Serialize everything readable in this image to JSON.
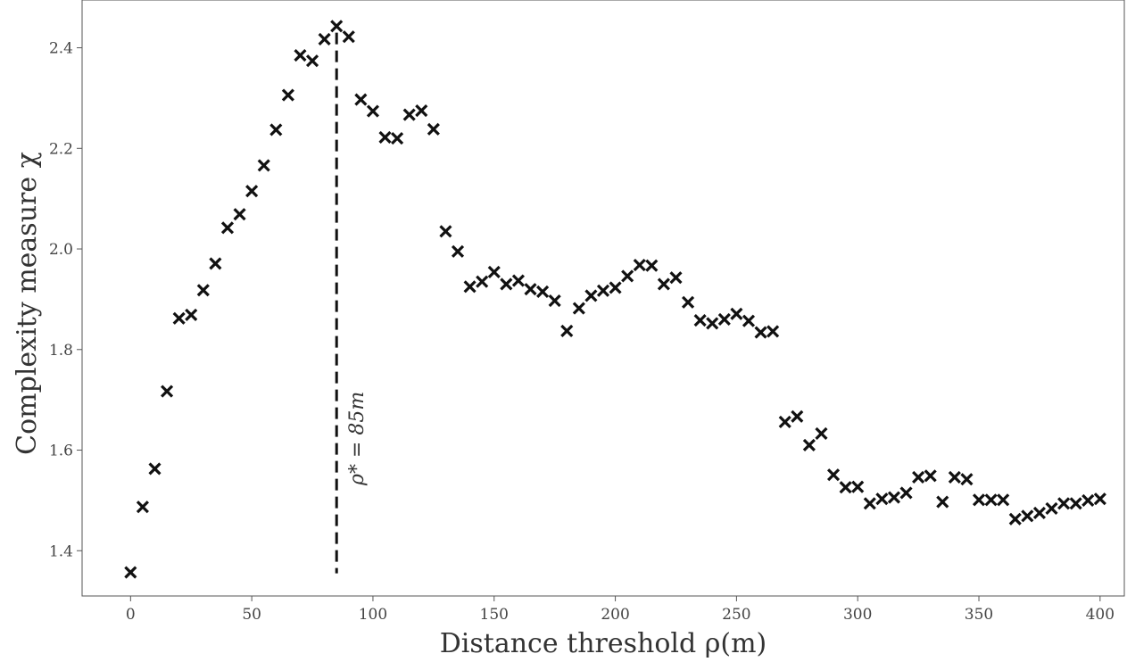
{
  "chart_data": {
    "type": "scatter",
    "xlabel": "Distance threshold ρ(m)",
    "ylabel": "Complexity measure χ",
    "xlim": [
      -20,
      410
    ],
    "ylim": [
      1.31,
      2.495
    ],
    "xticks": [
      0,
      50,
      100,
      150,
      200,
      250,
      300,
      350,
      400
    ],
    "yticks": [
      1.4,
      1.6,
      1.8,
      2.0,
      2.2,
      2.4
    ],
    "xtick_labels": [
      "0",
      "50",
      "100",
      "150",
      "200",
      "250",
      "300",
      "350",
      "400"
    ],
    "ytick_labels": [
      "1.4",
      "1.6",
      "1.8",
      "2.0",
      "2.2",
      "2.4"
    ],
    "grid": false,
    "marker": "x",
    "marker_color": "#111111",
    "annotation": {
      "text": "ρ* = 85m",
      "x": 85,
      "line_style": "dashed",
      "line_y_range": [
        1.355,
        2.43
      ]
    },
    "points": [
      [
        0,
        1.357
      ],
      [
        5,
        1.487
      ],
      [
        10,
        1.563
      ],
      [
        15,
        1.717
      ],
      [
        20,
        1.862
      ],
      [
        25,
        1.869
      ],
      [
        30,
        1.918
      ],
      [
        35,
        1.971
      ],
      [
        40,
        2.042
      ],
      [
        45,
        2.069
      ],
      [
        50,
        2.115
      ],
      [
        55,
        2.166
      ],
      [
        60,
        2.237
      ],
      [
        65,
        2.306
      ],
      [
        70,
        2.385
      ],
      [
        75,
        2.374
      ],
      [
        80,
        2.417
      ],
      [
        85,
        2.443
      ],
      [
        90,
        2.422
      ],
      [
        95,
        2.297
      ],
      [
        100,
        2.274
      ],
      [
        105,
        2.222
      ],
      [
        110,
        2.22
      ],
      [
        115,
        2.267
      ],
      [
        120,
        2.275
      ],
      [
        125,
        2.238
      ],
      [
        130,
        2.035
      ],
      [
        135,
        1.995
      ],
      [
        140,
        1.925
      ],
      [
        145,
        1.935
      ],
      [
        150,
        1.954
      ],
      [
        155,
        1.93
      ],
      [
        160,
        1.937
      ],
      [
        165,
        1.92
      ],
      [
        170,
        1.915
      ],
      [
        175,
        1.897
      ],
      [
        180,
        1.837
      ],
      [
        185,
        1.882
      ],
      [
        190,
        1.907
      ],
      [
        195,
        1.917
      ],
      [
        200,
        1.923
      ],
      [
        205,
        1.946
      ],
      [
        210,
        1.968
      ],
      [
        215,
        1.967
      ],
      [
        220,
        1.93
      ],
      [
        225,
        1.943
      ],
      [
        230,
        1.894
      ],
      [
        235,
        1.858
      ],
      [
        240,
        1.852
      ],
      [
        245,
        1.86
      ],
      [
        250,
        1.871
      ],
      [
        255,
        1.857
      ],
      [
        260,
        1.834
      ],
      [
        265,
        1.836
      ],
      [
        270,
        1.656
      ],
      [
        275,
        1.667
      ],
      [
        280,
        1.61
      ],
      [
        285,
        1.633
      ],
      [
        290,
        1.551
      ],
      [
        295,
        1.526
      ],
      [
        300,
        1.527
      ],
      [
        305,
        1.494
      ],
      [
        310,
        1.503
      ],
      [
        315,
        1.506
      ],
      [
        320,
        1.515
      ],
      [
        325,
        1.546
      ],
      [
        330,
        1.549
      ],
      [
        335,
        1.497
      ],
      [
        340,
        1.546
      ],
      [
        345,
        1.542
      ],
      [
        350,
        1.501
      ],
      [
        355,
        1.501
      ],
      [
        360,
        1.501
      ],
      [
        365,
        1.463
      ],
      [
        370,
        1.469
      ],
      [
        375,
        1.475
      ],
      [
        380,
        1.484
      ],
      [
        385,
        1.494
      ],
      [
        390,
        1.494
      ],
      [
        395,
        1.5
      ],
      [
        400,
        1.503
      ]
    ]
  }
}
